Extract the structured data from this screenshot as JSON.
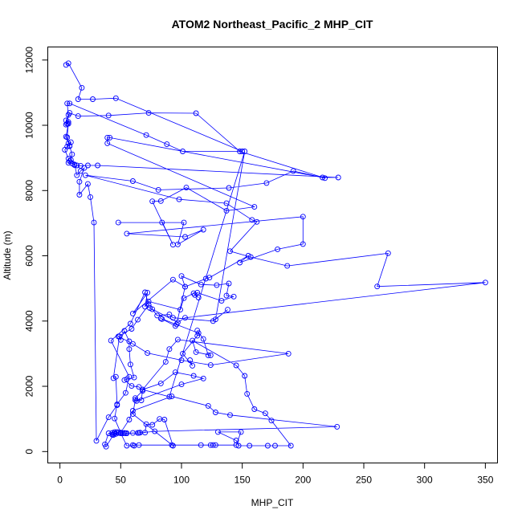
{
  "chart_data": {
    "type": "line",
    "title": "ATOM2 Northeast_Pacific_2 MHP_CIT",
    "xlabel": "MHP_CIT",
    "ylabel": "Altitude (m)",
    "xlim": [
      -10,
      360
    ],
    "ylim": [
      -350,
      12400
    ],
    "x_ticks": [
      0,
      50,
      100,
      150,
      200,
      250,
      300,
      350
    ],
    "y_ticks": [
      0,
      2000,
      4000,
      6000,
      8000,
      10000,
      12000
    ],
    "color": "#0000ff",
    "series": [
      {
        "values": [
          [
            5,
            11850
          ],
          [
            7,
            11900
          ],
          [
            18,
            11150
          ],
          [
            15,
            10800
          ],
          [
            27,
            10800
          ],
          [
            46,
            10830
          ],
          [
            150,
            9200
          ],
          [
            101,
            9200
          ],
          [
            88,
            9420
          ],
          [
            71,
            9700
          ],
          [
            8,
            10670
          ],
          [
            6,
            10670
          ],
          [
            7,
            10320
          ],
          [
            5,
            10150
          ],
          [
            6,
            10050
          ],
          [
            7,
            10050
          ],
          [
            5,
            9650
          ],
          [
            7,
            9450
          ],
          [
            9,
            9480
          ],
          [
            8,
            9370
          ],
          [
            6,
            9350
          ],
          [
            4,
            9250
          ],
          [
            7,
            8980
          ],
          [
            8,
            8900
          ],
          [
            7,
            8850
          ],
          [
            10,
            8830
          ],
          [
            12,
            8780
          ],
          [
            14,
            8770
          ],
          [
            17,
            8760
          ],
          [
            23,
            8770
          ],
          [
            31,
            8770
          ],
          [
            229,
            8400
          ],
          [
            216,
            8400
          ],
          [
            41,
            9620
          ],
          [
            39,
            9620
          ],
          [
            39,
            9450
          ],
          [
            160,
            7500
          ],
          [
            137,
            7380
          ],
          [
            104,
            8090
          ],
          [
            83,
            7680
          ],
          [
            76,
            7670
          ],
          [
            93,
            6340
          ],
          [
            84,
            7020
          ],
          [
            48,
            7020
          ],
          [
            102,
            7020
          ],
          [
            97,
            6350
          ],
          [
            118,
            6800
          ],
          [
            103,
            6580
          ],
          [
            55,
            6680
          ],
          [
            200,
            7200
          ],
          [
            200,
            6360
          ],
          [
            179,
            6200
          ],
          [
            148,
            5790
          ],
          [
            155,
            6000
          ],
          [
            123,
            5330
          ],
          [
            120,
            5300
          ],
          [
            103,
            5050
          ],
          [
            100,
            5380
          ],
          [
            116,
            5120
          ],
          [
            129,
            5100
          ],
          [
            139,
            5150
          ],
          [
            137,
            4780
          ],
          [
            143,
            4750
          ],
          [
            133,
            4620
          ],
          [
            113,
            4870
          ],
          [
            111,
            4800
          ],
          [
            114,
            4720
          ],
          [
            110,
            4850
          ],
          [
            102,
            4700
          ],
          [
            99,
            4350
          ],
          [
            73,
            4600
          ],
          [
            70,
            4440
          ],
          [
            72,
            4870
          ],
          [
            60,
            4230
          ],
          [
            93,
            5270
          ],
          [
            103,
            5050
          ],
          [
            96,
            3900
          ],
          [
            95,
            3850
          ],
          [
            84,
            4060
          ],
          [
            83,
            4080
          ],
          [
            114,
            3630
          ],
          [
            113,
            3550
          ],
          [
            101,
            3000
          ],
          [
            109,
            2630
          ],
          [
            107,
            2800
          ]
        ]
      },
      {
        "values": [
          [
            113,
            3710
          ],
          [
            118,
            3450
          ],
          [
            122,
            2950
          ],
          [
            124,
            2950
          ],
          [
            112,
            3050
          ],
          [
            109,
            3400
          ],
          [
            145,
            2640
          ],
          [
            152,
            2320
          ],
          [
            154,
            1770
          ],
          [
            160,
            1300
          ],
          [
            169,
            1170
          ],
          [
            174,
            950
          ],
          [
            190,
            180
          ],
          [
            171,
            180
          ],
          [
            177,
            180
          ],
          [
            156,
            180
          ],
          [
            147,
            180
          ],
          [
            145,
            340
          ],
          [
            130,
            600
          ],
          [
            149,
            600
          ],
          [
            145,
            200
          ],
          [
            128,
            200
          ],
          [
            116,
            200
          ],
          [
            124,
            200
          ],
          [
            126,
            200
          ],
          [
            92,
            200
          ],
          [
            65,
            200
          ],
          [
            60,
            200
          ],
          [
            61,
            180
          ],
          [
            55,
            180
          ],
          [
            50,
            560
          ],
          [
            48,
            570
          ],
          [
            47,
            600
          ],
          [
            45,
            600
          ],
          [
            43,
            570
          ],
          [
            40,
            560
          ],
          [
            37,
            220
          ],
          [
            38,
            150
          ],
          [
            44,
            510
          ],
          [
            48,
            570
          ],
          [
            52,
            560
          ],
          [
            53,
            570
          ],
          [
            54,
            560
          ],
          [
            60,
            570
          ],
          [
            64,
            570
          ],
          [
            66,
            580
          ],
          [
            70,
            580
          ],
          [
            71,
            840
          ],
          [
            76,
            820
          ],
          [
            82,
            1000
          ],
          [
            86,
            980
          ],
          [
            93,
            180
          ],
          [
            60,
            1150
          ],
          [
            62,
            1580
          ],
          [
            67,
            1570
          ],
          [
            68,
            1900
          ],
          [
            83,
            2090
          ],
          [
            95,
            2430
          ],
          [
            110,
            2320
          ],
          [
            118,
            2240
          ],
          [
            100,
            2060
          ],
          [
            63,
            1550
          ],
          [
            62,
            1640
          ],
          [
            68,
            1860
          ],
          [
            65,
            1980
          ],
          [
            59,
            2010
          ],
          [
            53,
            2190
          ],
          [
            55,
            2220
          ],
          [
            61,
            2270
          ],
          [
            58,
            2670
          ],
          [
            57,
            3140
          ],
          [
            57,
            3380
          ],
          [
            53,
            3700
          ],
          [
            50,
            3420
          ],
          [
            49,
            3530
          ],
          [
            44,
            2250
          ],
          [
            46,
            2290
          ],
          [
            47,
            1420
          ],
          [
            40,
            1050
          ],
          [
            30,
            330
          ],
          [
            28,
            7020
          ],
          [
            25,
            7800
          ],
          [
            23,
            8200
          ],
          [
            16,
            7870
          ],
          [
            16,
            8270
          ],
          [
            20,
            8690
          ],
          [
            17,
            8600
          ],
          [
            14,
            8470
          ],
          [
            12,
            8800
          ],
          [
            9,
            8940
          ],
          [
            10,
            9110
          ],
          [
            8,
            9360
          ],
          [
            6,
            9630
          ],
          [
            7,
            10100
          ],
          [
            5,
            10020
          ],
          [
            8,
            10380
          ],
          [
            15,
            10280
          ],
          [
            40,
            10300
          ],
          [
            73,
            10380
          ],
          [
            112,
            10370
          ],
          [
            148,
            9200
          ],
          [
            218,
            8380
          ],
          [
            192,
            8600
          ],
          [
            170,
            8230
          ],
          [
            139,
            8080
          ],
          [
            81,
            8020
          ],
          [
            60,
            8290
          ],
          [
            21,
            8470
          ],
          [
            98,
            7730
          ],
          [
            137,
            7610
          ],
          [
            158,
            7100
          ],
          [
            162,
            7040
          ],
          [
            140,
            6140
          ],
          [
            157,
            5960
          ],
          [
            187,
            5690
          ],
          [
            270,
            6080
          ],
          [
            261,
            5060
          ],
          [
            350,
            5180
          ],
          [
            103,
            4100
          ],
          [
            97,
            3960
          ],
          [
            74,
            4400
          ],
          [
            76,
            4360
          ],
          [
            80,
            4170
          ],
          [
            90,
            4200
          ],
          [
            93,
            4100
          ],
          [
            126,
            4000
          ],
          [
            138,
            4350
          ],
          [
            128,
            4050
          ],
          [
            152,
            9200
          ],
          [
            90,
            1680
          ],
          [
            68,
            1900
          ],
          [
            87,
            2750
          ],
          [
            90,
            3140
          ],
          [
            97,
            3430
          ],
          [
            188,
            3000
          ],
          [
            124,
            2650
          ],
          [
            100,
            2800
          ],
          [
            72,
            3020
          ],
          [
            60,
            3300
          ],
          [
            48,
            3530
          ],
          [
            59,
            3760
          ],
          [
            64,
            4040
          ],
          [
            73,
            4500
          ],
          [
            70,
            4880
          ],
          [
            58,
            3920
          ],
          [
            42,
            3400
          ],
          [
            57,
            2290
          ],
          [
            54,
            1800
          ],
          [
            47,
            1450
          ],
          [
            45,
            1010
          ],
          [
            50,
            580
          ],
          [
            55,
            560
          ],
          [
            65,
            570
          ],
          [
            78,
            620
          ],
          [
            228,
            760
          ],
          [
            140,
            1120
          ],
          [
            128,
            1200
          ],
          [
            122,
            1400
          ],
          [
            92,
            1690
          ],
          [
            60,
            1250
          ],
          [
            57,
            980
          ],
          [
            50,
            580
          ],
          [
            46,
            540
          ],
          [
            44,
            510
          ],
          [
            43,
            520
          ],
          [
            45,
            560
          ]
        ]
      }
    ]
  }
}
